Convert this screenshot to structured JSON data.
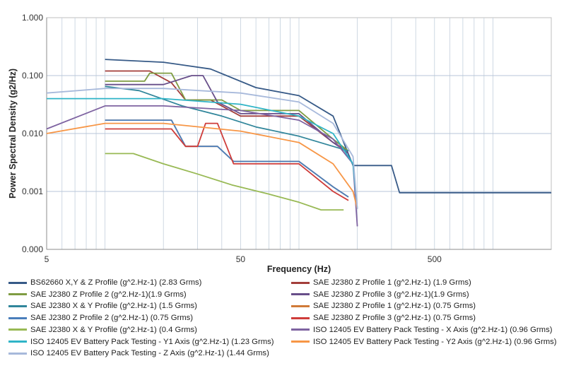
{
  "chart_data": {
    "type": "line",
    "title": "",
    "xlabel": "Frequency (Hz)",
    "ylabel": "Power Spectral Density (g2/Hz)",
    "x_scale": "log",
    "y_scale": "log",
    "xlim": [
      5,
      2000
    ],
    "ylim": [
      0.0001,
      1
    ],
    "x_ticks": [
      5,
      50,
      500
    ],
    "x_tick_labels": [
      "5",
      "50",
      "500"
    ],
    "y_ticks": [
      0.0001,
      0.001,
      0.01,
      0.1,
      1
    ],
    "y_tick_labels": [
      "0.000",
      "0.001",
      "0.010",
      "0.100",
      "1.000"
    ],
    "grid": true,
    "legend_position": "bottom",
    "series": [
      {
        "name": "BS62660 X,Y & Z Profile (g^2.Hz-1) (2.83 Grms)",
        "color": "#375a87",
        "x": [
          10,
          20,
          35,
          60,
          100,
          150,
          190,
          250,
          300,
          330,
          2000
        ],
        "y": [
          0.19,
          0.17,
          0.13,
          0.062,
          0.045,
          0.02,
          0.0028,
          0.0028,
          0.0028,
          0.00095,
          0.00095
        ]
      },
      {
        "name": "SAE J2380 Z Profile 1 (g^2.Hz-1) (1.9 Grms)",
        "color": "#a33e3b",
        "x": [
          10,
          17,
          22,
          26,
          35,
          40,
          50,
          100,
          150,
          180
        ],
        "y": [
          0.12,
          0.12,
          0.075,
          0.038,
          0.038,
          0.03,
          0.02,
          0.02,
          0.007,
          0.005
        ]
      },
      {
        "name": "SAE J2380 Z Profile 2 (g^2.Hz-1)(1.9 Grms)",
        "color": "#7f9c42",
        "x": [
          10,
          16,
          17,
          22,
          26,
          40,
          50,
          100,
          150,
          180
        ],
        "y": [
          0.08,
          0.08,
          0.11,
          0.11,
          0.038,
          0.038,
          0.025,
          0.025,
          0.008,
          0.005
        ]
      },
      {
        "name": "SAE J2380 Z Profile 3 (g^2.Hz-1)(1.9 Grms)",
        "color": "#674e89",
        "x": [
          10,
          20,
          28,
          32,
          38,
          50,
          100,
          150,
          180
        ],
        "y": [
          0.07,
          0.07,
          0.1,
          0.1,
          0.035,
          0.022,
          0.022,
          0.007,
          0.0045
        ]
      },
      {
        "name": "SAE J2380 X & Y Profile (g^2.Hz-1) (1.5 Grms)",
        "color": "#31869b",
        "x": [
          10,
          15,
          25,
          40,
          60,
          100,
          150,
          180
        ],
        "y": [
          0.065,
          0.055,
          0.03,
          0.02,
          0.013,
          0.009,
          0.006,
          0.005
        ]
      },
      {
        "name": "SAE J2380 Z Profile 1 (g^2.Hz-1) (0.75 Grms)",
        "color": "#d07a38",
        "x": [
          10,
          22,
          26,
          38,
          46,
          100,
          150,
          180
        ],
        "y": [
          0.017,
          0.017,
          0.006,
          0.006,
          0.0033,
          0.0033,
          0.0012,
          0.0008
        ]
      },
      {
        "name": "SAE J2380 Z Profile 2 (g^2.Hz-1) (0.75 Grms)",
        "color": "#4a7ebb",
        "x": [
          10,
          22,
          26,
          38,
          46,
          100,
          150,
          180
        ],
        "y": [
          0.017,
          0.017,
          0.006,
          0.006,
          0.0033,
          0.0033,
          0.0012,
          0.0008
        ]
      },
      {
        "name": "SAE J2380 Z Profile 3 (g^2.Hz-1) (0.75 Grms)",
        "color": "#cf3c3a",
        "x": [
          10,
          22,
          26,
          30,
          33,
          38,
          46,
          100,
          150,
          180
        ],
        "y": [
          0.012,
          0.012,
          0.006,
          0.006,
          0.015,
          0.015,
          0.003,
          0.003,
          0.001,
          0.0007
        ]
      },
      {
        "name": "SAE J2380 X & Y Profile (g^2.Hz-1) (0.4 Grms)",
        "color": "#98b954",
        "x": [
          10,
          14,
          20,
          30,
          45,
          70,
          100,
          130,
          170
        ],
        "y": [
          0.0045,
          0.0045,
          0.003,
          0.002,
          0.0013,
          0.0009,
          0.00065,
          0.00048,
          0.00048
        ]
      },
      {
        "name": "ISO 12405 EV Battery Pack Testing - X Axis (g^2.Hz-1) (0.96 Grms)",
        "color": "#7e63a1",
        "x": [
          5,
          10,
          20,
          50,
          100,
          150,
          190,
          200
        ],
        "y": [
          0.012,
          0.03,
          0.03,
          0.025,
          0.017,
          0.008,
          0.003,
          0.00025
        ]
      },
      {
        "name": "ISO 12405 EV Battery Pack Testing - Y1 Axis (g^2.Hz-1) (1.23 Grms)",
        "color": "#2fb4c7",
        "x": [
          5,
          20,
          50,
          100,
          150,
          190,
          200
        ],
        "y": [
          0.04,
          0.04,
          0.032,
          0.02,
          0.01,
          0.003,
          0.0005
        ]
      },
      {
        "name": "ISO 12405 EV Battery Pack Testing - Y2 Axis (g^2.Hz-1) (0.96 Grms)",
        "color": "#f79646",
        "x": [
          5,
          10,
          20,
          50,
          100,
          150,
          190,
          200
        ],
        "y": [
          0.01,
          0.015,
          0.015,
          0.011,
          0.007,
          0.003,
          0.001,
          0.0005
        ]
      },
      {
        "name": "ISO 12405 EV Battery Pack Testing - Z Axis (g^2.Hz-1) (1.44 Grms)",
        "color": "#a7b9db",
        "x": [
          5,
          10,
          20,
          50,
          100,
          150,
          190,
          200
        ],
        "y": [
          0.05,
          0.06,
          0.06,
          0.05,
          0.035,
          0.015,
          0.004,
          0.0005
        ]
      }
    ]
  }
}
